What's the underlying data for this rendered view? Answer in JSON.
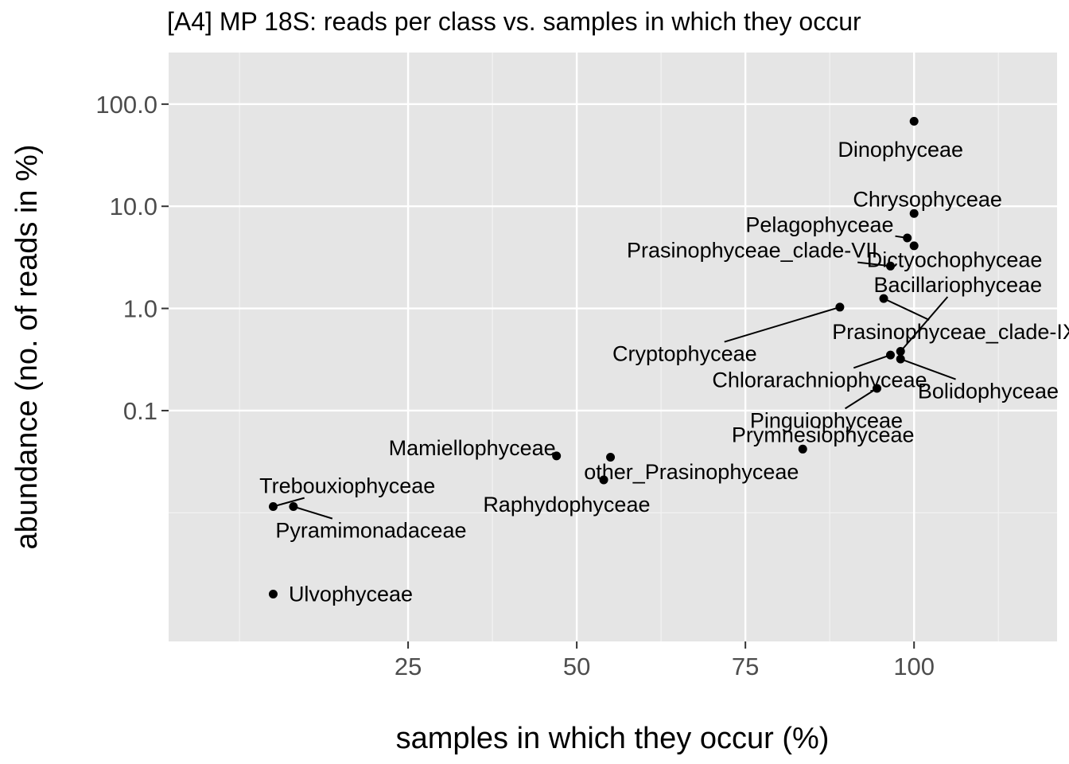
{
  "chart_data": {
    "type": "scatter",
    "title": "[A4] MP 18S: reads per class vs. samples in which they occur",
    "xlabel": "samples in which they occur (%)",
    "ylabel": "abundance (no. of reads in %)",
    "x_scale": "linear",
    "y_scale": "log10",
    "xlim": [
      -10.5,
      121.2
    ],
    "ylim": [
      0.00055,
      320
    ],
    "x_ticks": [
      25,
      50,
      75,
      100
    ],
    "x_tick_labels": [
      "25",
      "50",
      "75",
      "100"
    ],
    "x_minor_ticks": [
      0,
      37.5,
      62.5,
      87.5,
      112.5
    ],
    "y_ticks": [
      0.1,
      1,
      10,
      100
    ],
    "y_tick_labels": [
      "0.1",
      "1.0",
      "10.0",
      "100.0"
    ],
    "y_minor_ticks": [
      0.01
    ],
    "grid": true,
    "legend": "none",
    "points": [
      {
        "label": "Dinophyceae",
        "x": 100,
        "y": 68,
        "label_pos": [
          98,
          36
        ],
        "leader": false
      },
      {
        "label": "Chrysophyceae",
        "x": 100,
        "y": 8.5,
        "label_pos": [
          102,
          11.7
        ],
        "leader": false
      },
      {
        "label": "Pelagophyceae",
        "x": 99,
        "y": 4.9,
        "label_pos": [
          86,
          6.6
        ],
        "leader": true
      },
      {
        "label": "Dictyochophyceae",
        "x": 100,
        "y": 4.1,
        "label_pos": [
          106,
          3.0
        ],
        "leader": false
      },
      {
        "label": "Prasinophyceae_clade-VII",
        "x": 96.5,
        "y": 2.6,
        "label_pos": [
          76,
          3.7
        ],
        "leader": true
      },
      {
        "label": "Bacillariophyceae",
        "x": 98,
        "y": 0.38,
        "label_pos": [
          106.5,
          1.7
        ],
        "leader": true
      },
      {
        "label": "Prasinophyceae_clade-IX",
        "x": 95.5,
        "y": 1.25,
        "label_pos": [
          106,
          0.59
        ],
        "leader": true
      },
      {
        "label": "Cryptophyceae",
        "x": 89,
        "y": 1.03,
        "label_pos": [
          66,
          0.36
        ],
        "leader": true
      },
      {
        "label": "Chlorarachniophyceae",
        "x": 96.5,
        "y": 0.35,
        "label_pos": [
          86,
          0.2
        ],
        "leader": true
      },
      {
        "label": "Bolidophyceae",
        "x": 98,
        "y": 0.32,
        "label_pos": [
          111,
          0.155
        ],
        "leader": true
      },
      {
        "label": "Pinguiophyceae",
        "x": 94.5,
        "y": 0.165,
        "label_pos": [
          87,
          0.08
        ],
        "leader": true
      },
      {
        "label": "Prymnesiophyceae",
        "x": 83.5,
        "y": 0.042,
        "label_pos": [
          86.5,
          0.058
        ],
        "leader": false
      },
      {
        "label": "Mamiellophyceae",
        "x": 47,
        "y": 0.036,
        "label_pos": [
          34.5,
          0.043
        ],
        "leader": false
      },
      {
        "label": "other_Prasinophyceae",
        "x": 55,
        "y": 0.035,
        "label_pos": [
          67,
          0.025
        ],
        "leader": false
      },
      {
        "label": "Raphydophyceae",
        "x": 54,
        "y": 0.021,
        "label_pos": [
          48.5,
          0.012
        ],
        "leader": false
      },
      {
        "label": "Trebouxiophyceae",
        "x": 5,
        "y": 0.0115,
        "label_pos": [
          16,
          0.0183
        ],
        "leader": true
      },
      {
        "label": "Pyramimonadaceae",
        "x": 8,
        "y": 0.0115,
        "label_pos": [
          19.5,
          0.0067
        ],
        "leader": true
      },
      {
        "label": "Ulvophyceae",
        "x": 5,
        "y": 0.0016,
        "label_pos": [
          16.5,
          0.0016
        ],
        "leader": false
      }
    ],
    "colors": {
      "panel_bg": "#e5e5e5",
      "grid_major": "#ffffff",
      "grid_minor": "#f3f3f3",
      "point": "#000000",
      "tick": "#333333"
    }
  }
}
